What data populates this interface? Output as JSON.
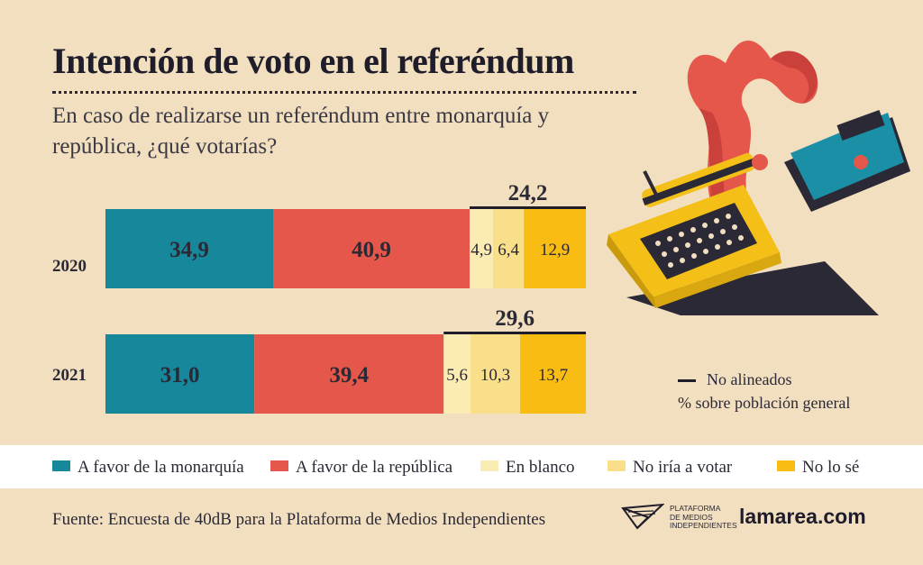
{
  "title": "Intención de voto en el referéndum",
  "subtitle": "En caso de realizarse un referéndum entre monarquía y república, ¿qué votarías?",
  "side_notes": {
    "no_alineados": "No alineados",
    "percent_note": "% sobre población general"
  },
  "legend": [
    {
      "label": "A favor de la monarquía",
      "color": "#17879c"
    },
    {
      "label": "A favor de la república",
      "color": "#e4574a"
    },
    {
      "label": "En blanco",
      "color": "#fbecb4"
    },
    {
      "label": "No iría a votar",
      "color": "#f9df8a"
    },
    {
      "label": "No lo sé",
      "color": "#f9bc12"
    }
  ],
  "source": "Fuente: Encuesta de 40dB para la Plataforma de Medios Independientes",
  "logo": {
    "pmi_lines": [
      "PLATAFORMA",
      "DE MEDIOS",
      "INDEPENDIENTES"
    ],
    "brand": "lamarea.com"
  },
  "illustration": {
    "icon": "typewriter-illustration"
  },
  "chart_data": {
    "type": "bar",
    "orientation": "horizontal-stacked",
    "categories": [
      "2020",
      "2021"
    ],
    "series": [
      {
        "name": "A favor de la monarquía",
        "values": [
          34.9,
          31.0
        ],
        "labels": [
          "34,9",
          "31,0"
        ],
        "color": "#17879c"
      },
      {
        "name": "A favor de la república",
        "values": [
          40.9,
          39.4
        ],
        "labels": [
          "40,9",
          "39,4"
        ],
        "color": "#e4574a"
      },
      {
        "name": "En blanco",
        "values": [
          4.9,
          5.6
        ],
        "labels": [
          "4,9",
          "5,6"
        ],
        "color": "#fbecb4"
      },
      {
        "name": "No iría a votar",
        "values": [
          6.4,
          10.3
        ],
        "labels": [
          "6,4",
          "10,3"
        ],
        "color": "#f9df8a"
      },
      {
        "name": "No lo sé",
        "values": [
          12.9,
          13.7
        ],
        "labels": [
          "12,9",
          "13,7"
        ],
        "color": "#f9bc12"
      }
    ],
    "no_alineados_totals": [
      {
        "value": 24.2,
        "label": "24,2"
      },
      {
        "value": 29.6,
        "label": "29,6"
      }
    ],
    "xlim": [
      0,
      100
    ]
  }
}
